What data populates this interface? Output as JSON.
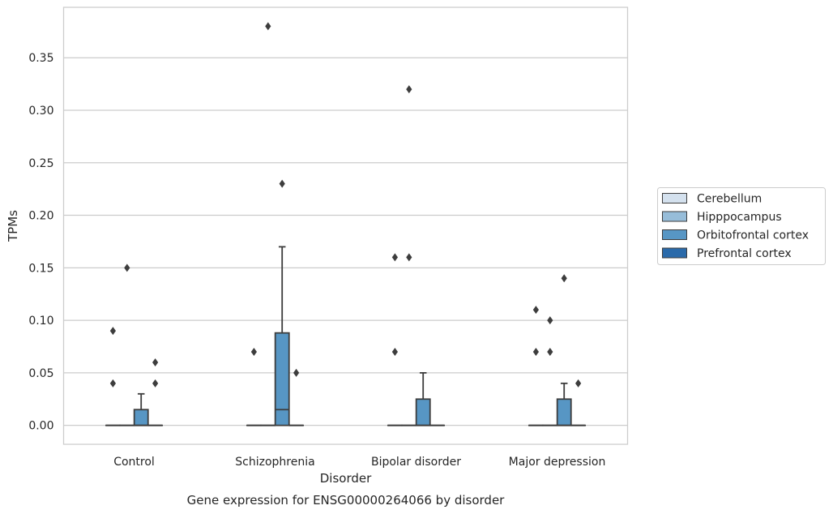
{
  "chart_data": {
    "type": "box",
    "title": "",
    "caption": "Gene expression for ENSG00000264066 by disorder",
    "xlabel": "Disorder",
    "ylabel": "TPMs",
    "categories": [
      "Control",
      "Schizophrenia",
      "Bipolar disorder",
      "Major depression"
    ],
    "ylim": [
      -0.018,
      0.398
    ],
    "yticks": [
      0.0,
      0.05,
      0.1,
      0.15,
      0.2,
      0.25,
      0.3,
      0.35
    ],
    "ytick_labels": [
      "0.00",
      "0.05",
      "0.10",
      "0.15",
      "0.20",
      "0.25",
      "0.30",
      "0.35"
    ],
    "grid": "horizontal",
    "legend": {
      "placement": "right",
      "entries": [
        "Cerebellum",
        "Hipppocampus",
        "Orbitofrontal cortex",
        "Prefrontal cortex"
      ]
    },
    "series": [
      {
        "name": "Cerebellum",
        "color": "#d4e1ee",
        "boxes": [
          {
            "q1": 0,
            "median": 0,
            "q3": 0,
            "whisker_low": 0,
            "whisker_high": 0,
            "outliers": [
              0.04,
              0.09
            ]
          },
          {
            "q1": 0,
            "median": 0,
            "q3": 0,
            "whisker_low": 0,
            "whisker_high": 0,
            "outliers": [
              0.07
            ]
          },
          {
            "q1": 0,
            "median": 0,
            "q3": 0,
            "whisker_low": 0,
            "whisker_high": 0,
            "outliers": [
              0.07,
              0.16
            ]
          },
          {
            "q1": 0,
            "median": 0,
            "q3": 0,
            "whisker_low": 0,
            "whisker_high": 0,
            "outliers": [
              0.07,
              0.11
            ]
          }
        ]
      },
      {
        "name": "Hipppocampus",
        "color": "#97bdd9",
        "boxes": [
          {
            "q1": 0,
            "median": 0,
            "q3": 0,
            "whisker_low": 0,
            "whisker_high": 0,
            "outliers": [
              0.15
            ]
          },
          {
            "q1": 0,
            "median": 0,
            "q3": 0,
            "whisker_low": 0,
            "whisker_high": 0,
            "outliers": [
              0.38
            ]
          },
          {
            "q1": 0,
            "median": 0,
            "q3": 0,
            "whisker_low": 0,
            "whisker_high": 0,
            "outliers": [
              0.16,
              0.32
            ]
          },
          {
            "q1": 0,
            "median": 0,
            "q3": 0,
            "whisker_low": 0,
            "whisker_high": 0,
            "outliers": [
              0.07,
              0.1
            ]
          }
        ]
      },
      {
        "name": "Orbitofrontal cortex",
        "color": "#5796c4",
        "boxes": [
          {
            "q1": 0,
            "median": 0,
            "q3": 0.015,
            "whisker_low": 0,
            "whisker_high": 0.03,
            "outliers": []
          },
          {
            "q1": 0,
            "median": 0.015,
            "q3": 0.088,
            "whisker_low": 0,
            "whisker_high": 0.17,
            "outliers": [
              0.23
            ]
          },
          {
            "q1": 0,
            "median": 0,
            "q3": 0.025,
            "whisker_low": 0,
            "whisker_high": 0.05,
            "outliers": []
          },
          {
            "q1": 0,
            "median": 0,
            "q3": 0.025,
            "whisker_low": 0,
            "whisker_high": 0.04,
            "outliers": [
              0.14
            ]
          }
        ]
      },
      {
        "name": "Prefrontal cortex",
        "color": "#2a6aaa",
        "boxes": [
          {
            "q1": 0,
            "median": 0,
            "q3": 0,
            "whisker_low": 0,
            "whisker_high": 0,
            "outliers": [
              0.04,
              0.06
            ]
          },
          {
            "q1": 0,
            "median": 0,
            "q3": 0,
            "whisker_low": 0,
            "whisker_high": 0,
            "outliers": [
              0.05
            ]
          },
          {
            "q1": 0,
            "median": 0,
            "q3": 0,
            "whisker_low": 0,
            "whisker_high": 0,
            "outliers": []
          },
          {
            "q1": 0,
            "median": 0,
            "q3": 0,
            "whisker_low": 0,
            "whisker_high": 0,
            "outliers": [
              0.04
            ]
          }
        ]
      }
    ]
  }
}
